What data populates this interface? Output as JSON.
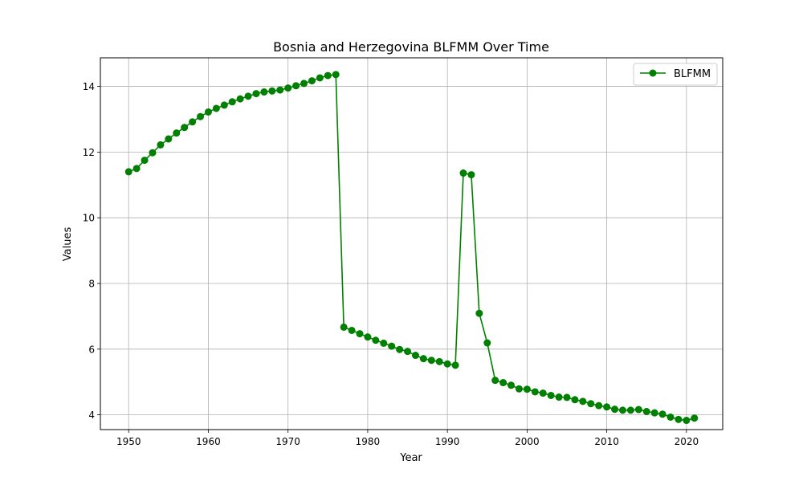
{
  "chart_data": {
    "type": "line",
    "title": "Bosnia and Herzegovina BLFMM Over Time",
    "xlabel": "Year",
    "ylabel": "Values",
    "xlim": [
      1946.45,
      2024.55
    ],
    "ylim": [
      3.55,
      14.87
    ],
    "xticks": [
      1950,
      1960,
      1970,
      1980,
      1990,
      2000,
      2010,
      2020
    ],
    "yticks": [
      4,
      6,
      8,
      10,
      12,
      14
    ],
    "grid": true,
    "legend_position": "top-right",
    "series": [
      {
        "name": "BLFMM",
        "color": "#008000",
        "marker": "circle",
        "x": [
          1950,
          1951,
          1952,
          1953,
          1954,
          1955,
          1956,
          1957,
          1958,
          1959,
          1960,
          1961,
          1962,
          1963,
          1964,
          1965,
          1966,
          1967,
          1968,
          1969,
          1970,
          1971,
          1972,
          1973,
          1974,
          1975,
          1976,
          1977,
          1978,
          1979,
          1980,
          1981,
          1982,
          1983,
          1984,
          1985,
          1986,
          1987,
          1988,
          1989,
          1990,
          1991,
          1992,
          1993,
          1994,
          1995,
          1996,
          1997,
          1998,
          1999,
          2000,
          2001,
          2002,
          2003,
          2004,
          2005,
          2006,
          2007,
          2008,
          2009,
          2010,
          2011,
          2012,
          2013,
          2014,
          2015,
          2016,
          2017,
          2018,
          2019,
          2020,
          2021
        ],
        "values": [
          11.4,
          11.5,
          11.75,
          11.98,
          12.22,
          12.4,
          12.58,
          12.75,
          12.92,
          13.08,
          13.22,
          13.33,
          13.43,
          13.53,
          13.62,
          13.7,
          13.78,
          13.83,
          13.86,
          13.89,
          13.95,
          14.02,
          14.09,
          14.17,
          14.26,
          14.33,
          14.36,
          6.67,
          6.57,
          6.47,
          6.37,
          6.27,
          6.18,
          6.09,
          5.99,
          5.93,
          5.81,
          5.71,
          5.66,
          5.62,
          5.55,
          5.51,
          11.36,
          11.31,
          7.09,
          6.19,
          5.05,
          4.98,
          4.9,
          4.79,
          4.78,
          4.7,
          4.66,
          4.59,
          4.54,
          4.53,
          4.46,
          4.41,
          4.34,
          4.28,
          4.24,
          4.17,
          4.14,
          4.14,
          4.16,
          4.1,
          4.06,
          4.02,
          3.93,
          3.86,
          3.83,
          3.9
        ]
      }
    ]
  }
}
